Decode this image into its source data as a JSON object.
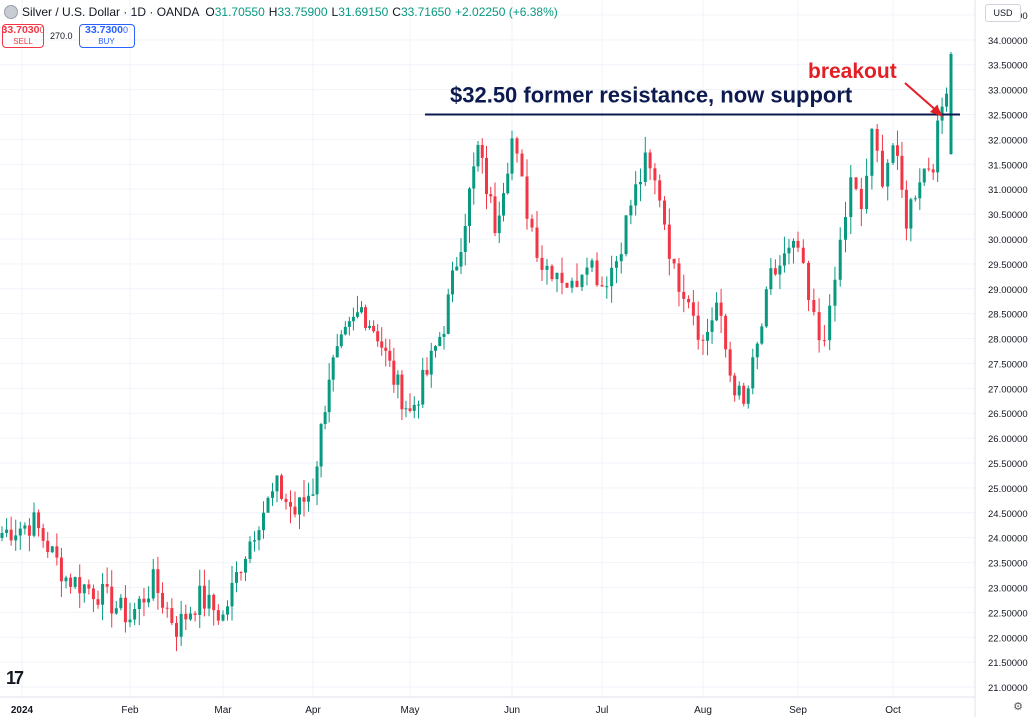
{
  "header": {
    "symbol_title": "Silver / U.S. Dollar · 1D · OANDA",
    "open_label": "O",
    "open": "31.70550",
    "high_label": "H",
    "high": "33.75900",
    "low_label": "L",
    "low": "31.69150",
    "close_label": "C",
    "close": "33.71650",
    "change": "+2.02250 (+6.38%)"
  },
  "trade": {
    "sell_price": "33.7030",
    "sell_price_small": "0",
    "sell_label": "SELL",
    "spread": "270.0",
    "buy_price": "33.7300",
    "buy_price_small": "0",
    "buy_label": "BUY"
  },
  "currency_button": "USD",
  "logo": "17",
  "colors": {
    "up": "#089981",
    "down": "#f23645",
    "line": "#0d1a4f",
    "annot_red": "#e31e24"
  },
  "chart_data": {
    "type": "candlestick",
    "title": "Silver / U.S. Dollar · 1D · OANDA",
    "ylim": [
      20.8,
      34.8
    ],
    "y_ticks": [
      "34.50000",
      "34.00000",
      "33.50000",
      "33.00000",
      "32.50000",
      "32.00000",
      "31.50000",
      "31.00000",
      "30.50000",
      "30.00000",
      "29.50000",
      "29.00000",
      "28.50000",
      "28.00000",
      "27.50000",
      "27.00000",
      "26.50000",
      "26.00000",
      "25.50000",
      "25.00000",
      "24.50000",
      "24.00000",
      "23.50000",
      "23.00000",
      "22.50000",
      "22.00000",
      "21.50000",
      "21.00000"
    ],
    "x_ticks": [
      "2024",
      "Feb",
      "Mar",
      "Apr",
      "May",
      "Jun",
      "Jul",
      "Aug",
      "Sep",
      "Oct"
    ],
    "anchors": [
      [
        "2024",
        24.1
      ],
      [
        "2024",
        24.3
      ],
      [
        "2024",
        23.2
      ],
      [
        "2024",
        22.9
      ],
      [
        "Feb",
        22.4
      ],
      [
        "Feb",
        23.1
      ],
      [
        "Feb",
        22.2
      ],
      [
        "Feb",
        22.8
      ],
      [
        "Mar",
        22.4
      ],
      [
        "Mar",
        23.5
      ],
      [
        "Mar",
        24.4
      ],
      [
        "Mar",
        25.0
      ],
      [
        "Mar",
        24.5
      ],
      [
        "Apr",
        25.0
      ],
      [
        "Apr",
        27.3
      ],
      [
        "Apr",
        28.0
      ],
      [
        "Apr",
        28.6
      ],
      [
        "Apr",
        28.1
      ],
      [
        "Apr",
        27.2
      ],
      [
        "May",
        26.5
      ],
      [
        "May",
        27.3
      ],
      [
        "May",
        28.3
      ],
      [
        "May",
        30.0
      ],
      [
        "May",
        31.8
      ],
      [
        "May",
        30.3
      ],
      [
        "Jun",
        32.0
      ],
      [
        "Jun",
        30.6
      ],
      [
        "Jun",
        29.5
      ],
      [
        "Jun",
        29.4
      ],
      [
        "Jun",
        29.0
      ],
      [
        "Jun",
        29.7
      ],
      [
        "Jul",
        29.1
      ],
      [
        "Jul",
        29.6
      ],
      [
        "Jul",
        30.7
      ],
      [
        "Jul",
        31.5
      ],
      [
        "Jul",
        30.9
      ],
      [
        "Jul",
        29.3
      ],
      [
        "Jul",
        28.9
      ],
      [
        "Aug",
        27.9
      ],
      [
        "Aug",
        28.7
      ],
      [
        "Aug",
        27.3
      ],
      [
        "Aug",
        26.6
      ],
      [
        "Aug",
        27.8
      ],
      [
        "Aug",
        29.2
      ],
      [
        "Aug",
        29.6
      ],
      [
        "Sep",
        29.8
      ],
      [
        "Sep",
        28.7
      ],
      [
        "Sep",
        28.0
      ],
      [
        "Sep",
        28.4
      ],
      [
        "Sep",
        29.9
      ],
      [
        "Sep",
        31.1
      ],
      [
        "Sep",
        30.6
      ],
      [
        "Sep",
        32.0
      ],
      [
        "Sep",
        31.3
      ],
      [
        "Oct",
        31.9
      ],
      [
        "Oct",
        30.4
      ],
      [
        "Oct",
        31.3
      ],
      [
        "Oct",
        31.6
      ],
      [
        "Oct",
        33.7
      ]
    ],
    "resistance_level": 32.5,
    "annotations": [
      {
        "text": "$32.50 former resistance, now support"
      },
      {
        "text": "breakout"
      }
    ],
    "last_candle": {
      "open": 31.7055,
      "high": 33.759,
      "low": 31.6915,
      "close": 33.7165
    }
  }
}
